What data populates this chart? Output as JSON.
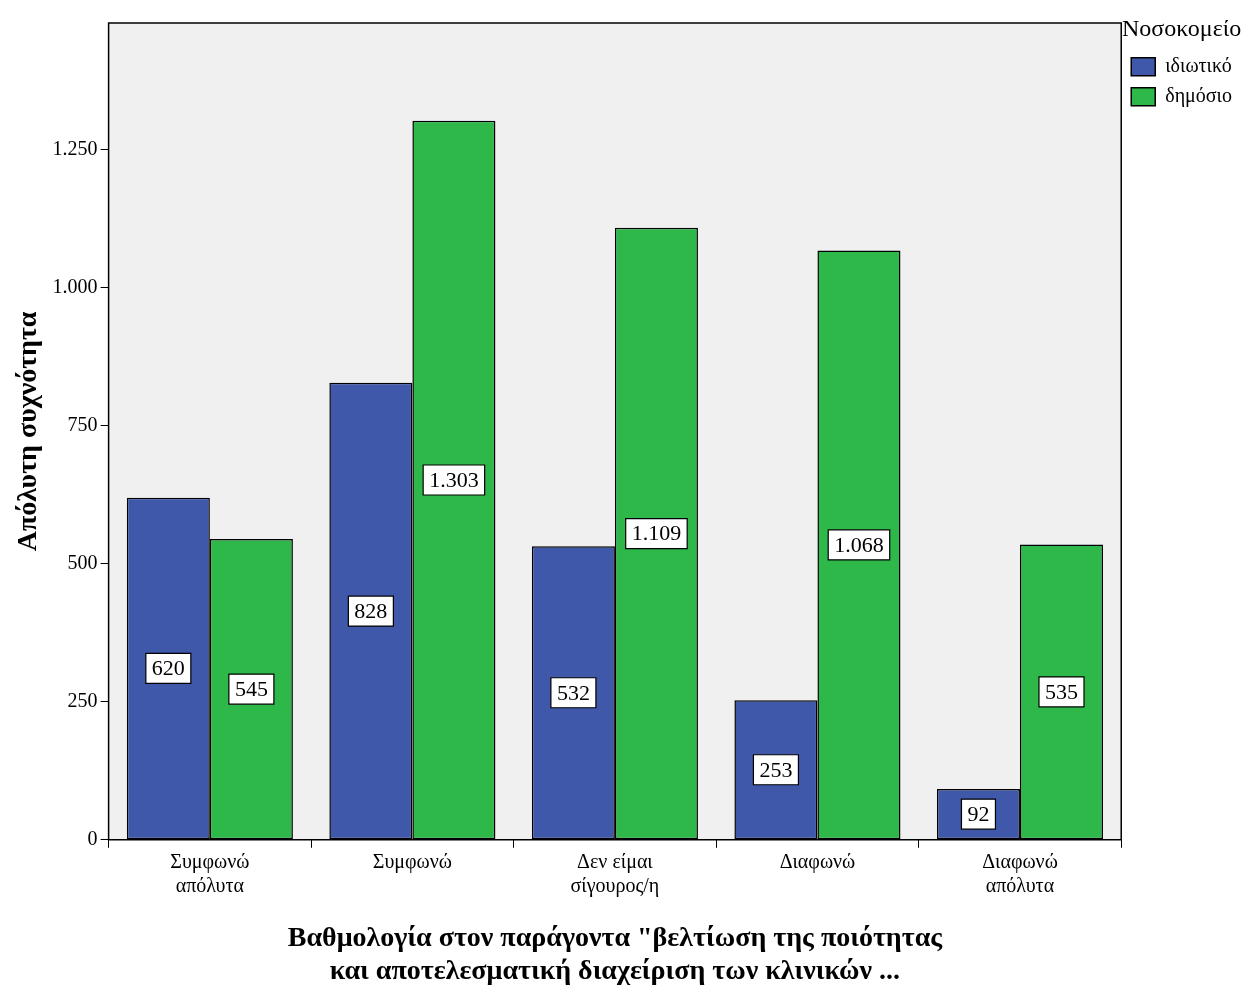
{
  "chart_data": {
    "type": "bar",
    "xlabel": "Βαθμολογία στον παράγοντα \"βελτίωση της ποιότητας και αποτελεσματική διαχείριση των κλινικών ...",
    "ylabel": "Απόλυτη συχνότητα",
    "legend_title": "Νοσοκομείο",
    "categories": [
      "Συμφωνώ απόλυτα",
      "Συμφωνώ",
      "Δεν είμαι σίγουρος/η",
      "Διαφωνώ",
      "Διαφωνώ απόλυτα"
    ],
    "series": [
      {
        "name": "ιδιωτικό",
        "color": "#3f58aa",
        "values": [
          620,
          828,
          532,
          253,
          92
        ],
        "value_labels": [
          "620",
          "828",
          "532",
          "253",
          "92"
        ]
      },
      {
        "name": "δημόσιο",
        "color": "#2eb84a",
        "values": [
          545,
          1303,
          1109,
          1068,
          535
        ],
        "value_labels": [
          "545",
          "1.303",
          "1.109",
          "1.068",
          "535"
        ]
      }
    ],
    "ylim": [
      0,
      1480
    ],
    "yticks": [
      0,
      250,
      500,
      750,
      {
        "value": 1000,
        "label": "1.000"
      },
      {
        "value": 1250,
        "label": "1.250"
      }
    ],
    "grid": false,
    "legend": "top right"
  }
}
